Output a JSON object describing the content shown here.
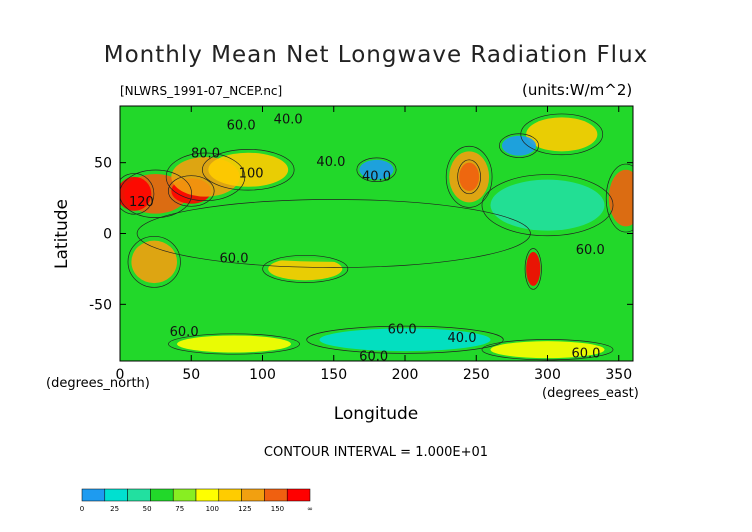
{
  "title": "Monthly Mean Net Longwave Radiation Flux",
  "file_label": "[NLWRS_1991-07_NCEP.nc]",
  "units_label": "(units:W/m^2)",
  "contour_interval": "CONTOUR INTERVAL = 1.000E+01",
  "chart_data": {
    "type": "heatmap",
    "title": "Monthly Mean Net Longwave Radiation Flux",
    "xlabel": "Longitude",
    "ylabel": "Latitude",
    "x_unit_label": "(degrees_east)",
    "y_unit_label": "(degrees_north)",
    "xlim": [
      0,
      360
    ],
    "ylim": [
      -90,
      90
    ],
    "x_ticks": [
      0,
      50,
      100,
      150,
      200,
      250,
      300,
      350
    ],
    "y_ticks": [
      -50,
      0,
      50
    ],
    "contour_interval": 10,
    "colorbar": {
      "ticks": [
        "0",
        "25",
        "50",
        "75",
        "100",
        "125",
        "150",
        "∞"
      ],
      "colors": [
        "#1e9bf0",
        "#00e0d0",
        "#22e0a0",
        "#22d82a",
        "#88ee22",
        "#ffff00",
        "#ffcc00",
        "#f2a010",
        "#f06010",
        "#ff0000"
      ]
    },
    "contour_labels": [
      {
        "text": "60.0",
        "lon": 85,
        "lat": 76
      },
      {
        "text": "40.0",
        "lon": 118,
        "lat": 80
      },
      {
        "text": "80.0",
        "lon": 60,
        "lat": 56
      },
      {
        "text": "100",
        "lon": 92,
        "lat": 42
      },
      {
        "text": "40.0",
        "lon": 148,
        "lat": 50
      },
      {
        "text": "40.0",
        "lon": 180,
        "lat": 40
      },
      {
        "text": "120",
        "lon": 15,
        "lat": 22
      },
      {
        "text": "60.0",
        "lon": 80,
        "lat": -18
      },
      {
        "text": "60.0",
        "lon": 330,
        "lat": -12
      },
      {
        "text": "60.0",
        "lon": 45,
        "lat": -70
      },
      {
        "text": "60.0",
        "lon": 198,
        "lat": -68
      },
      {
        "text": "40.0",
        "lon": 240,
        "lat": -74
      },
      {
        "text": "60.0",
        "lon": 178,
        "lat": -87
      },
      {
        "text": "60.0",
        "lon": 327,
        "lat": -85
      }
    ],
    "color_regions": [
      {
        "lon": 25,
        "lat": 28,
        "rx": 22,
        "ry": 14,
        "level": 8
      },
      {
        "lon": 50,
        "lat": 30,
        "rx": 14,
        "ry": 9,
        "level": 9
      },
      {
        "lon": 60,
        "lat": 40,
        "rx": 24,
        "ry": 14,
        "level": 7
      },
      {
        "lon": 10,
        "lat": 28,
        "rx": 12,
        "ry": 12,
        "level": 9
      },
      {
        "lon": 90,
        "lat": 45,
        "rx": 28,
        "ry": 12,
        "level": 6
      },
      {
        "lon": 245,
        "lat": 40,
        "rx": 14,
        "ry": 18,
        "level": 7
      },
      {
        "lon": 245,
        "lat": 40,
        "rx": 7,
        "ry": 10,
        "level": 8
      },
      {
        "lon": 355,
        "lat": 25,
        "rx": 12,
        "ry": 20,
        "level": 8
      },
      {
        "lon": 24,
        "lat": -20,
        "rx": 16,
        "ry": 15,
        "level": 7
      },
      {
        "lon": 130,
        "lat": -25,
        "rx": 26,
        "ry": 8,
        "level": 6
      },
      {
        "lon": 290,
        "lat": -25,
        "rx": 5,
        "ry": 12,
        "level": 9
      },
      {
        "lon": 310,
        "lat": 70,
        "rx": 25,
        "ry": 12,
        "level": 6
      },
      {
        "lon": 180,
        "lat": 45,
        "rx": 12,
        "ry": 7,
        "level": 0
      },
      {
        "lon": 280,
        "lat": 62,
        "rx": 12,
        "ry": 7,
        "level": 0
      },
      {
        "lon": 200,
        "lat": -75,
        "rx": 60,
        "ry": 8,
        "level": 1
      },
      {
        "lon": 80,
        "lat": -78,
        "rx": 40,
        "ry": 6,
        "level": 5
      },
      {
        "lon": 300,
        "lat": -82,
        "rx": 40,
        "ry": 6,
        "level": 5
      },
      {
        "lon": 150,
        "lat": 0,
        "rx": 120,
        "ry": 20,
        "level": 3
      },
      {
        "lon": 300,
        "lat": 20,
        "rx": 40,
        "ry": 18,
        "level": 2
      }
    ]
  }
}
